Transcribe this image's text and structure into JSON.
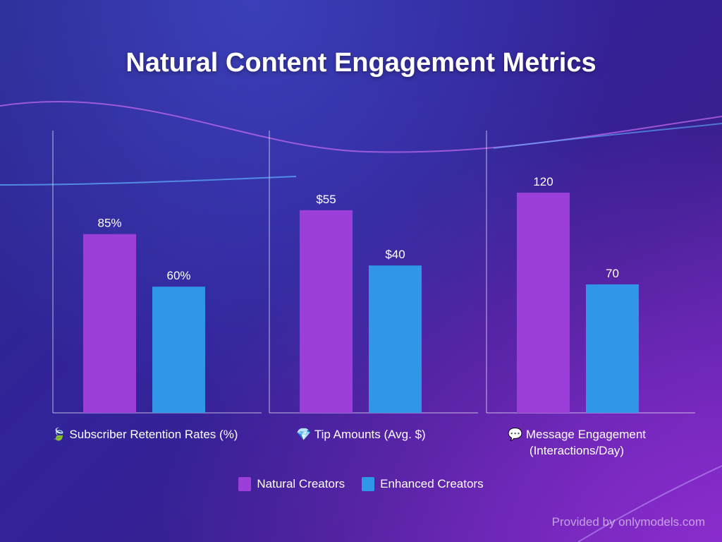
{
  "colors": {
    "natural": "#9b3fd8",
    "enhanced": "#2f96e8"
  },
  "chart_data": {
    "type": "bar",
    "title": "Natural Content Engagement Metrics",
    "panels": [
      {
        "label": "Subscriber Retention Rates (%)",
        "icon": "leaf-icon",
        "icon_glyph": "🍃",
        "values": [
          85,
          60
        ],
        "data_labels": [
          "85%",
          "60%"
        ]
      },
      {
        "label": "Tip Amounts (Avg. $)",
        "icon": "diamond-icon",
        "icon_glyph": "💎",
        "values": [
          55,
          40
        ],
        "data_labels": [
          "$55",
          "$40"
        ]
      },
      {
        "label": "Message Engagement (Interactions/Day)",
        "icon": "speech-bubble-icon",
        "icon_glyph": "💬",
        "values": [
          120,
          70
        ],
        "data_labels": [
          "120",
          "70"
        ]
      }
    ],
    "series": [
      {
        "name": "Natural Creators"
      },
      {
        "name": "Enhanced Creators"
      }
    ],
    "legend": "bottom-center",
    "grid": false
  },
  "watermark": "Provided by onlymodels.com"
}
